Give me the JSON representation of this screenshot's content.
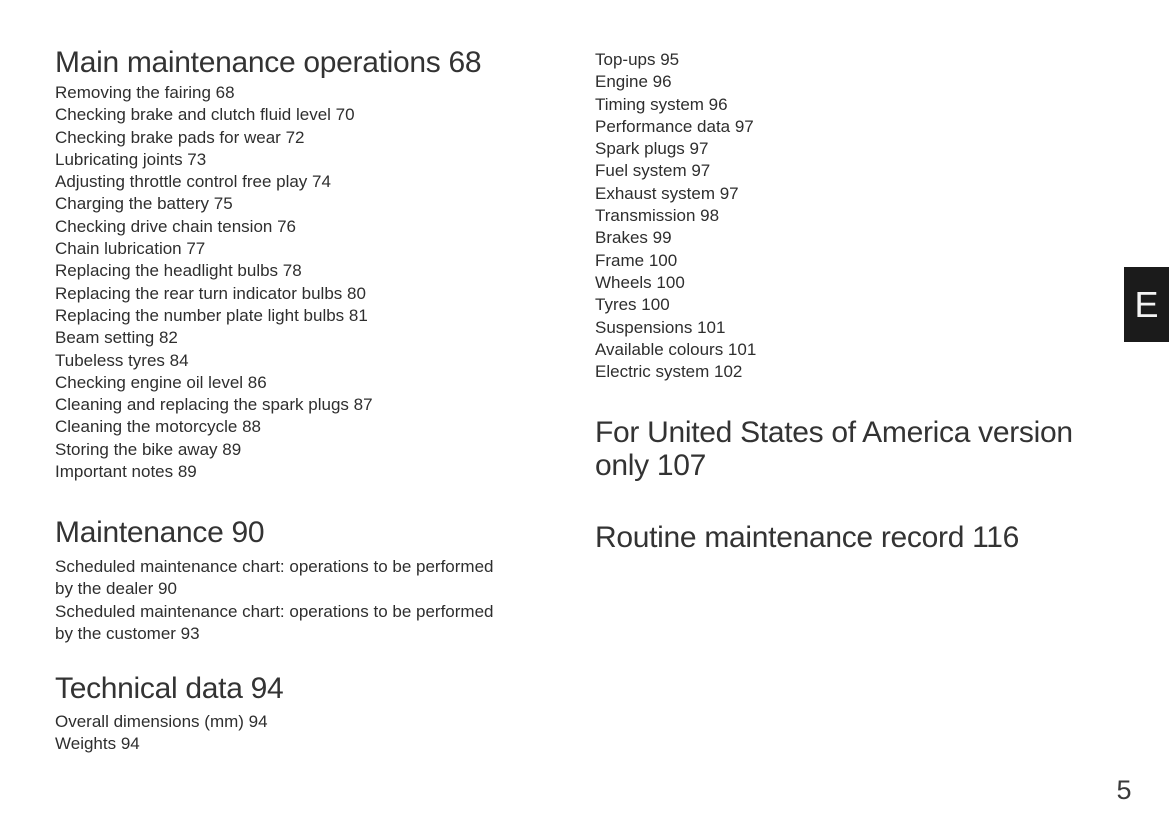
{
  "page": {
    "number": "5",
    "section_tab_letter": "E"
  },
  "colors": {
    "text": "#303030",
    "tab_background": "#1b1b1b",
    "tab_letter": "#f4f4f4",
    "background": "#ffffff"
  },
  "left_column": {
    "sections": [
      {
        "heading": "Main maintenance operations 68",
        "items": [
          "Removing the fairing 68",
          "Checking brake and clutch fluid level 70",
          "Checking brake pads for wear 72",
          "Lubricating joints 73",
          "Adjusting throttle control free play 74",
          "Charging the battery 75",
          "Checking drive chain tension 76",
          "Chain lubrication 77",
          "Replacing the headlight bulbs 78",
          "Replacing the rear turn indicator bulbs 80",
          "Replacing the number plate light bulbs 81",
          "Beam setting 82",
          "Tubeless tyres 84",
          "Checking engine oil level 86",
          "Cleaning and replacing the spark plugs 87",
          "Cleaning the motorcycle 88",
          "Storing the bike away 89",
          "Important notes 89"
        ]
      },
      {
        "heading": "Maintenance 90",
        "items": [
          "Scheduled maintenance chart: operations to be performed\nby the dealer 90",
          "Scheduled maintenance chart: operations to be performed\nby the customer 93"
        ]
      },
      {
        "heading": "Technical data 94",
        "items": [
          "Overall dimensions (mm) 94",
          "Weights 94"
        ]
      }
    ]
  },
  "right_column": {
    "items": [
      "Top-ups 95",
      "Engine 96",
      "Timing system 96",
      "Performance data 97",
      "Spark plugs 97",
      "Fuel system 97",
      "Exhaust system 97",
      "Transmission 98",
      "Brakes 99",
      "Frame 100",
      "Wheels 100",
      "Tyres 100",
      "Suspensions 101",
      "Available colours 101",
      "Electric system 102"
    ],
    "headings": [
      "For United States of America version\nonly 107",
      "Routine maintenance record 116"
    ]
  }
}
